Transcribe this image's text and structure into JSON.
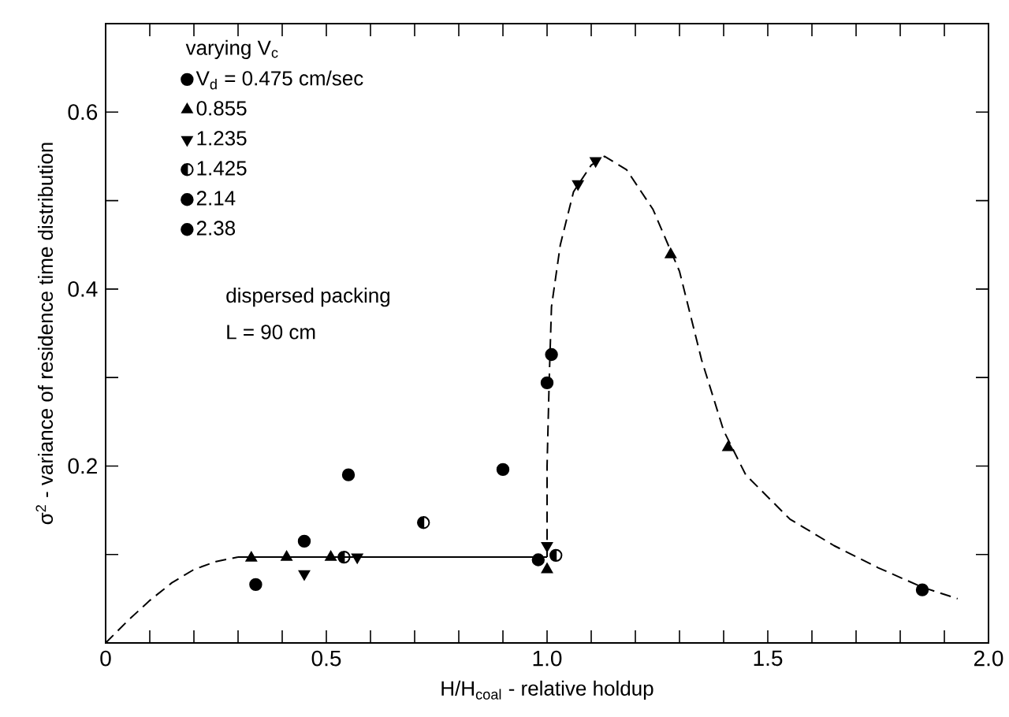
{
  "chart_data": {
    "type": "scatter",
    "xlabel": "H/H$_{coal}$  - relative holdup",
    "ylabel": "σ$^{2}$ - variance of residence time distribution",
    "legend_title": "varying V$_{c}$",
    "legend": "top left",
    "grid": false,
    "xlim": [
      0,
      2.0
    ],
    "ylim": [
      0,
      0.7
    ],
    "xticks": [
      0,
      {
        "value": 0.1,
        "label": null
      },
      {
        "value": 0.2,
        "label": null
      },
      {
        "value": 0.3,
        "label": null
      },
      {
        "value": 0.4,
        "label": null
      },
      {
        "value": 0.5,
        "label": "0.5"
      },
      {
        "value": 0.6,
        "label": null
      },
      {
        "value": 0.7,
        "label": null
      },
      {
        "value": 0.8,
        "label": null
      },
      {
        "value": 0.9,
        "label": null
      },
      {
        "value": 1.0,
        "label": "1.0"
      },
      {
        "value": 1.1,
        "label": null
      },
      {
        "value": 1.2,
        "label": null
      },
      {
        "value": 1.3,
        "label": null
      },
      {
        "value": 1.4,
        "label": null
      },
      {
        "value": 1.5,
        "label": "1.5"
      },
      {
        "value": 1.6,
        "label": null
      },
      {
        "value": 1.7,
        "label": null
      },
      {
        "value": 1.8,
        "label": null
      },
      {
        "value": 1.9,
        "label": null
      },
      {
        "value": 2.0,
        "label": "2.0"
      }
    ],
    "yticks": [
      {
        "value": 0,
        "label": null
      },
      {
        "value": 0.1,
        "label": null
      },
      0.2,
      {
        "value": 0.3,
        "label": null
      },
      0.4,
      {
        "value": 0.5,
        "label": null
      },
      0.6
    ],
    "annotations": [
      "dispersed packing",
      "L = 90 cm"
    ],
    "series": [
      {
        "name": "V$_{d}$ = 0.475 cm/sec",
        "color": "#000000",
        "marker": "circle",
        "x": [
          0.34,
          0.45,
          0.55,
          0.98,
          1.0,
          1.01
        ],
        "values": [
          0.066,
          0.115,
          0.19,
          0.094,
          0.294,
          0.326
        ]
      },
      {
        "name": "0.855",
        "color": "#000000",
        "marker": "triangle",
        "x": [
          0.33,
          0.41,
          0.51,
          1.0,
          1.28,
          1.41
        ],
        "values": [
          0.096,
          0.097,
          0.097,
          0.083,
          0.439,
          0.221
        ]
      },
      {
        "name": "1.235",
        "color": "#000000",
        "marker": "triangle_down",
        "x": [
          0.45,
          0.57,
          1.0,
          1.07,
          1.11
        ],
        "values": [
          0.078,
          0.097,
          0.11,
          0.519,
          0.545
        ]
      },
      {
        "name": "1.425",
        "color": "#000000",
        "x": [
          0.54,
          0.72,
          1.02
        ],
        "values": [
          0.097,
          0.136,
          0.099
        ]
      },
      {
        "name": "2.14",
        "color": "#000000",
        "marker": "circle",
        "x": [
          0.9
        ],
        "values": [
          0.196
        ]
      },
      {
        "name": "2.38",
        "color": "#000000",
        "marker": "circle",
        "x": [
          1.85
        ],
        "values": [
          0.06
        ]
      },
      {
        "type": "line",
        "color": "#000000",
        "marker": "none",
        "line_style": "dashed",
        "x": [
          0,
          0.05,
          0.1,
          0.15,
          0.2,
          0.25,
          0.3
        ],
        "values": [
          0,
          0.025,
          0.048,
          0.068,
          0.083,
          0.092,
          0.097
        ]
      },
      {
        "type": "line",
        "color": "#000000",
        "marker": "none",
        "line_style": "solid",
        "x": [
          0.3,
          1.0
        ],
        "values": [
          0.097,
          0.097
        ]
      },
      {
        "type": "line",
        "color": "#000000",
        "marker": "none",
        "line_style": "dashed",
        "x": [
          1.0,
          1.0,
          1.005,
          1.01,
          1.03,
          1.06,
          1.1,
          1.13,
          1.18,
          1.24,
          1.3,
          1.35,
          1.4,
          1.45,
          1.55,
          1.65,
          1.75,
          1.85,
          1.93
        ],
        "values": [
          0.097,
          0.2,
          0.3,
          0.38,
          0.45,
          0.51,
          0.54,
          0.55,
          0.535,
          0.49,
          0.42,
          0.32,
          0.24,
          0.19,
          0.14,
          0.11,
          0.085,
          0.063,
          0.05
        ]
      }
    ]
  }
}
